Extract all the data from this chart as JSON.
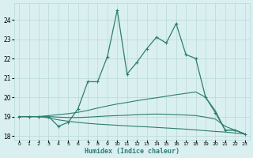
{
  "xlabel": "Humidex (Indice chaleur)",
  "x": [
    0,
    1,
    2,
    3,
    4,
    5,
    6,
    7,
    8,
    9,
    10,
    11,
    12,
    13,
    14,
    15,
    16,
    17,
    18,
    19,
    20,
    21,
    22,
    23
  ],
  "y_main": [
    19.0,
    19.0,
    19.0,
    19.0,
    18.5,
    18.7,
    19.4,
    20.8,
    20.8,
    22.1,
    24.5,
    21.2,
    21.8,
    22.5,
    23.1,
    22.8,
    23.8,
    22.2,
    22.0,
    20.0,
    19.2,
    18.3,
    18.3,
    18.1
  ],
  "y_upper": [
    19.0,
    19.0,
    19.0,
    19.05,
    19.1,
    19.15,
    19.22,
    19.32,
    19.44,
    19.55,
    19.65,
    19.73,
    19.82,
    19.9,
    19.97,
    20.05,
    20.13,
    20.2,
    20.27,
    20.0,
    19.3,
    18.3,
    18.3,
    18.1
  ],
  "y_mid": [
    19.0,
    19.0,
    19.0,
    19.0,
    18.97,
    18.95,
    18.95,
    18.97,
    19.0,
    19.03,
    19.05,
    19.07,
    19.1,
    19.12,
    19.13,
    19.12,
    19.1,
    19.08,
    19.05,
    18.97,
    18.87,
    18.5,
    18.3,
    18.1
  ],
  "y_lower": [
    19.0,
    19.0,
    19.0,
    18.93,
    18.83,
    18.76,
    18.7,
    18.65,
    18.61,
    18.58,
    18.55,
    18.52,
    18.49,
    18.47,
    18.44,
    18.41,
    18.38,
    18.35,
    18.31,
    18.27,
    18.23,
    18.2,
    18.15,
    18.1
  ],
  "ylim": [
    17.8,
    24.85
  ],
  "xlim": [
    -0.5,
    23.5
  ],
  "yticks": [
    18,
    19,
    20,
    21,
    22,
    23,
    24
  ],
  "xticks": [
    0,
    1,
    2,
    3,
    4,
    5,
    6,
    7,
    8,
    9,
    10,
    11,
    12,
    13,
    14,
    15,
    16,
    17,
    18,
    19,
    20,
    21,
    22,
    23
  ],
  "line_color": "#2e7d6e",
  "bg_color": "#daf0f0",
  "grid_color": "#b8d8d8"
}
